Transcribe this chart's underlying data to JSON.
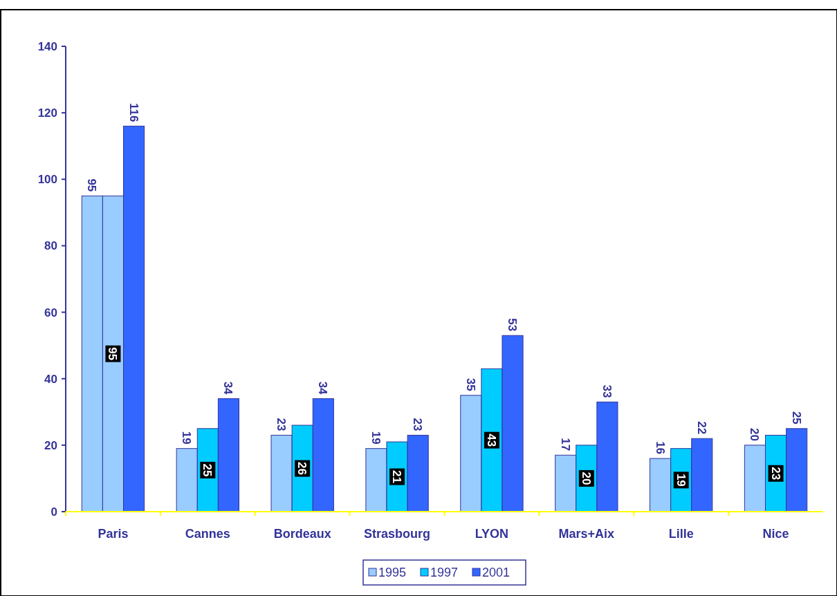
{
  "chart_data": {
    "type": "bar",
    "categories": [
      "Paris",
      "Cannes",
      "Bordeaux",
      "Strasbourg",
      "LYON",
      "Mars+Aix",
      "Lille",
      "Nice"
    ],
    "series": [
      {
        "name": "1995",
        "color": "#99ccff",
        "values": [
          95,
          19,
          23,
          19,
          35,
          17,
          16,
          20
        ]
      },
      {
        "name": "1997",
        "color": "#00ccff",
        "colors": [
          "#99ccff",
          "#00ccff",
          "#00ccff",
          "#00ccff",
          "#00ccff",
          "#00ccff",
          "#00ccff",
          "#00ccff"
        ],
        "values": [
          95,
          25,
          26,
          21,
          43,
          20,
          19,
          23
        ]
      },
      {
        "name": "2001",
        "color": "#3366ff",
        "values": [
          116,
          34,
          34,
          23,
          53,
          33,
          22,
          25
        ]
      }
    ],
    "ylim": [
      0,
      140
    ],
    "yticks": [
      0,
      20,
      40,
      60,
      80,
      100,
      120,
      140
    ],
    "grid": false,
    "legend": "bottom",
    "data_labels": true
  }
}
